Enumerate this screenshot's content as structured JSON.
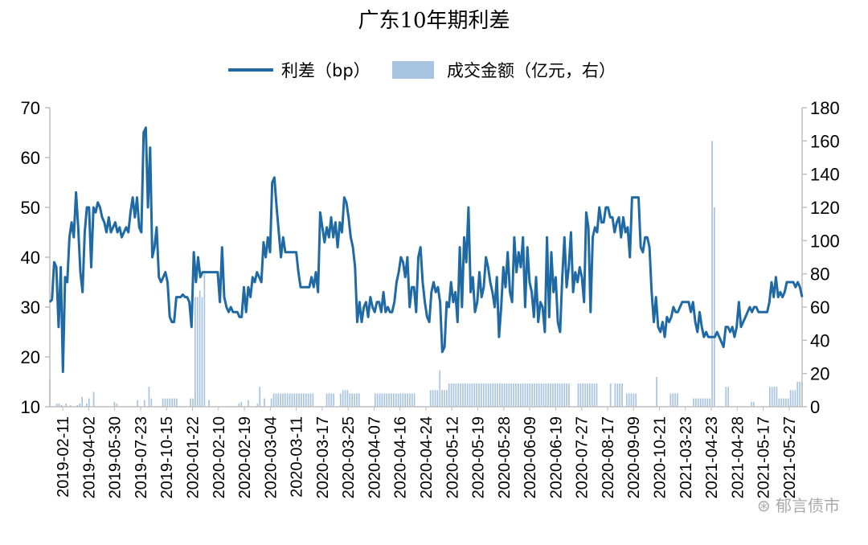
{
  "chart_data": {
    "type": "line",
    "title": "广东10年期利差",
    "legend": {
      "placement": "top",
      "line_label": "利差（bp）",
      "bar_label": "成交金额（亿元，右）"
    },
    "colors": {
      "line": "#1f6aa5",
      "bars": "#a9c4e0",
      "axis": "#bfbfbf"
    },
    "y_left": {
      "min": 10,
      "max": 70,
      "ticks": [
        10,
        20,
        30,
        40,
        50,
        60,
        70
      ]
    },
    "y_right": {
      "min": 0,
      "max": 180,
      "ticks": [
        0,
        20,
        40,
        60,
        80,
        100,
        120,
        140,
        160,
        180
      ]
    },
    "x_tick_labels": [
      "2019-02-11",
      "2019-04-02",
      "2019-05-30",
      "2019-07-23",
      "2019-10-15",
      "2020-01-22",
      "2020-02-10",
      "2020-02-19",
      "2020-03-04",
      "2020-03-11",
      "2020-03-17",
      "2020-03-25",
      "2020-04-07",
      "2020-04-16",
      "2020-04-24",
      "2020-05-12",
      "2020-05-19",
      "2020-05-28",
      "2020-06-09",
      "2020-06-19",
      "2020-07-27",
      "2020-08-17",
      "2020-09-09",
      "2020-10-21",
      "2021-03-23",
      "2021-04-23",
      "2021-04-28",
      "2021-05-17",
      "2021-05-27"
    ],
    "series": [
      {
        "name": "利差（bp）",
        "axis": "left",
        "values": [
          31,
          31.5,
          39,
          38,
          26,
          38,
          17,
          36,
          35,
          44,
          47,
          44,
          53,
          46,
          37,
          33,
          45,
          50,
          50,
          38,
          50,
          49,
          51,
          50,
          48,
          47,
          45,
          48,
          45,
          46,
          47,
          45,
          46,
          44,
          45,
          46,
          45,
          49,
          52,
          48,
          52,
          46,
          45,
          65,
          66,
          50,
          62,
          40,
          42,
          46,
          36,
          35,
          36,
          37,
          35,
          28,
          27,
          27,
          32,
          32,
          32,
          32.5,
          32,
          32,
          31,
          26,
          41,
          35,
          40,
          36,
          37,
          37,
          37,
          37,
          37,
          37,
          37,
          37,
          31,
          42,
          32,
          30,
          29,
          30,
          29,
          29,
          29,
          28,
          28,
          34,
          29,
          34,
          32,
          36,
          35,
          37,
          36,
          35,
          43,
          40,
          44,
          41,
          55,
          56,
          50,
          45,
          40,
          44,
          41,
          41,
          41,
          41,
          41,
          41,
          37,
          34,
          34,
          34,
          34,
          34,
          36,
          34,
          37,
          33,
          49,
          46,
          43,
          46,
          44,
          48,
          44,
          47,
          42,
          47,
          45,
          52,
          51,
          48,
          44,
          42,
          38,
          27,
          31,
          27,
          30,
          31,
          28,
          32,
          30,
          29,
          31,
          31,
          29,
          33,
          29,
          30,
          29,
          29,
          31,
          35,
          37,
          40,
          39,
          36,
          40,
          30,
          34,
          34,
          29,
          40,
          42,
          35,
          31,
          28,
          27,
          33,
          35,
          33,
          34,
          31,
          21,
          22,
          31,
          30,
          35,
          31,
          33,
          27,
          42,
          30,
          44,
          39,
          50,
          33,
          36,
          29,
          31,
          37,
          32,
          34,
          40,
          38,
          35,
          33,
          30,
          36,
          24,
          30,
          38,
          34,
          41,
          33,
          31,
          44,
          37,
          41,
          38,
          44,
          30,
          42,
          35,
          33,
          28,
          36,
          27,
          31,
          30,
          25,
          44,
          28,
          41,
          33,
          36,
          27,
          25,
          36,
          44,
          34,
          38,
          45,
          33,
          37,
          35,
          38,
          36,
          31,
          49,
          46,
          29,
          44,
          46,
          45,
          50,
          47,
          47,
          50,
          50,
          48,
          48,
          45,
          47,
          48,
          44,
          48,
          45,
          46,
          40,
          52,
          52,
          52,
          52,
          42,
          41,
          44,
          44,
          42,
          33,
          27,
          32,
          26,
          25,
          27,
          24,
          28,
          27,
          28,
          30,
          29,
          29,
          30,
          31,
          31,
          31,
          31,
          29,
          31,
          27,
          25,
          29,
          26,
          24,
          25,
          24,
          24,
          24,
          24,
          25,
          24,
          23,
          22,
          26,
          26,
          25,
          26,
          24,
          26,
          31,
          26,
          27,
          28,
          29,
          30,
          29,
          30,
          30,
          29,
          29,
          29,
          29,
          29,
          31,
          35,
          32,
          36,
          32,
          33,
          32,
          33,
          35,
          35,
          35,
          35,
          34,
          35,
          34,
          32
        ],
        "color": "#1f6aa5"
      },
      {
        "name": "成交金额（亿元，右）",
        "axis": "right",
        "values": [
          16,
          0,
          0,
          2,
          2,
          1,
          0,
          2,
          0,
          1,
          0,
          0,
          1,
          2,
          6,
          0,
          2,
          5,
          0,
          9,
          0,
          0,
          0,
          0,
          0,
          0,
          0,
          0,
          3,
          2,
          0,
          0,
          0,
          0,
          0,
          0,
          0,
          0,
          4,
          0,
          0,
          4,
          0,
          12,
          5,
          0,
          0,
          0,
          0,
          5,
          5,
          5,
          5,
          5,
          5,
          5,
          0,
          0,
          0,
          0,
          0,
          5,
          5,
          66,
          66,
          70,
          66,
          80,
          0,
          4,
          0,
          0,
          0,
          0,
          0,
          0,
          0,
          0,
          0,
          0,
          0,
          0,
          2,
          3,
          0,
          0,
          4,
          0,
          0,
          0,
          2,
          12,
          0,
          5,
          0,
          0,
          5,
          8,
          8,
          8,
          8,
          8,
          8,
          8,
          8,
          8,
          8,
          8,
          8,
          8,
          8,
          8,
          8,
          8,
          8,
          0,
          0,
          0,
          0,
          0,
          8,
          8,
          8,
          8,
          0,
          0,
          8,
          10,
          10,
          10,
          8,
          8,
          8,
          8,
          8,
          0,
          0,
          0,
          0,
          0,
          0,
          8,
          8,
          8,
          8,
          8,
          8,
          8,
          8,
          8,
          8,
          8,
          8,
          8,
          8,
          8,
          8,
          8,
          8,
          0,
          0,
          0,
          0,
          0,
          0,
          10,
          10,
          10,
          10,
          22,
          10,
          10,
          10,
          14,
          14,
          14,
          14,
          14,
          14,
          14,
          14,
          14,
          14,
          14,
          14,
          14,
          14,
          14,
          14,
          14,
          14,
          14,
          14,
          14,
          14,
          14,
          14,
          14,
          14,
          14,
          14,
          14,
          14,
          14,
          14,
          14,
          14,
          14,
          14,
          14,
          14,
          14,
          14,
          14,
          14,
          14,
          14,
          14,
          14,
          14,
          14,
          14,
          14,
          14,
          14,
          14,
          0,
          0,
          0,
          14,
          14,
          14,
          14,
          14,
          14,
          14,
          14,
          14,
          0,
          0,
          0,
          0,
          0,
          14,
          0,
          14,
          14,
          14,
          14,
          0,
          8,
          8,
          8,
          8,
          8,
          0,
          0,
          0,
          0,
          0,
          0,
          0,
          0,
          18,
          0,
          0,
          0,
          0,
          0,
          8,
          8,
          8,
          8,
          0,
          0,
          0,
          0,
          0,
          0,
          5,
          5,
          5,
          5,
          5,
          5,
          5,
          5,
          160,
          120,
          0,
          0,
          0,
          0,
          12,
          12,
          0,
          0,
          0,
          0,
          0,
          0,
          0,
          0,
          0,
          3,
          3,
          0,
          0,
          0,
          0,
          0,
          0,
          12,
          12,
          12,
          12,
          5,
          5,
          5,
          5,
          5,
          10,
          10,
          10,
          15,
          15,
          15
        ],
        "color": "#a9c4e0"
      }
    ]
  },
  "watermark": "⊛ 郁言债市"
}
